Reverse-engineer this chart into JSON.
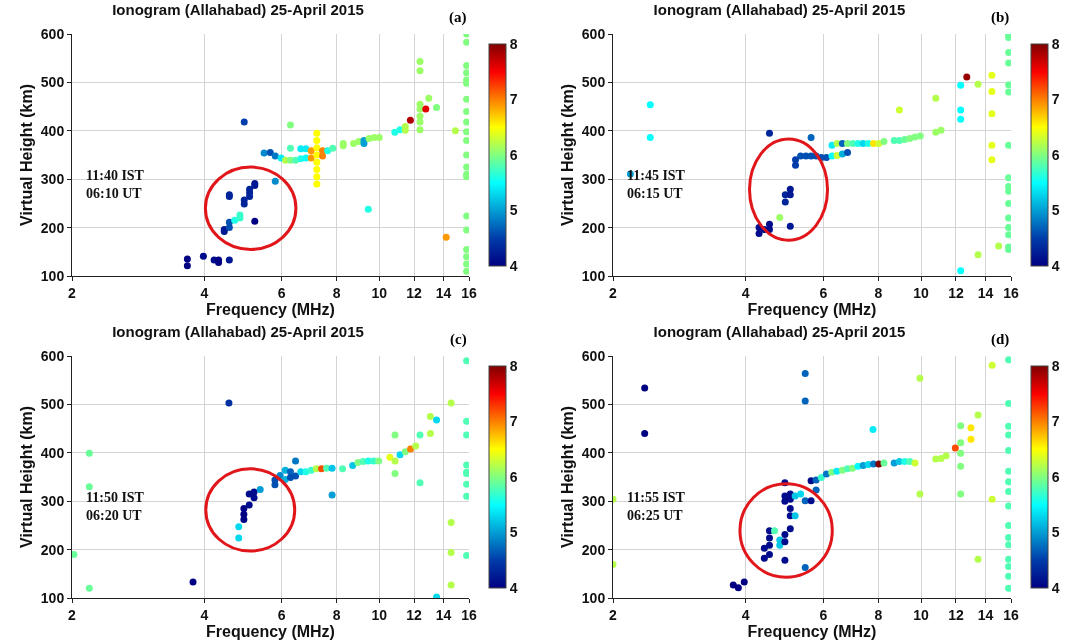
{
  "chart_data": [
    {
      "type": "scatter",
      "title": "Ionogram (Allahabad) 25-April 2015",
      "xlabel": "Frequency (MHz)",
      "ylabel": "Virtual Height (km)",
      "annotations": [
        "(a)",
        "11:40 IST\n06:10 UT"
      ],
      "log": "x",
      "grid": true,
      "marker": "circle",
      "xlim": [
        2,
        16
      ],
      "xticks": [
        2,
        4,
        6,
        8,
        10,
        12,
        14,
        16
      ],
      "ylim": [
        100,
        600
      ],
      "yticks": [
        100,
        200,
        300,
        400,
        500,
        600
      ],
      "clim": [
        4,
        8
      ],
      "cticks": [
        4,
        5,
        6,
        7,
        8
      ],
      "x": [
        3.66,
        3.66,
        3.98,
        4.21,
        4.31,
        4.31,
        4.56,
        4.56,
        4.56,
        4.44,
        4.44,
        4.56,
        4.56,
        4.69,
        4.82,
        4.82,
        4.93,
        4.93,
        5.07,
        5.07,
        5.07,
        5.21,
        5.21,
        5.21,
        4.93,
        5.47,
        5.65,
        5.8,
        5.8,
        5.98,
        6.12,
        6.28,
        6.28,
        6.28,
        6.45,
        6.63,
        6.63,
        6.81,
        6.81,
        7.0,
        7.0,
        7.21,
        7.21,
        7.21,
        7.21,
        7.21,
        7.21,
        7.21,
        7.21,
        7.43,
        7.43,
        7.63,
        7.84,
        8.28,
        8.28,
        8.74,
        8.98,
        9.23,
        9.23,
        9.48,
        9.74,
        10.0,
        9.44,
        10.85,
        11.15,
        11.46,
        11.46,
        11.77,
        12.38,
        12.38,
        12.38,
        12.38,
        12.38,
        12.38,
        12.38,
        12.76,
        12.96,
        13.5,
        14.2,
        14.9,
        15.8,
        15.8,
        15.8,
        15.8,
        15.8,
        15.8,
        15.8,
        15.8,
        15.8,
        15.8,
        15.8,
        15.8,
        15.8,
        15.8,
        15.8,
        15.8,
        15.8,
        15.8,
        15.8,
        15.8,
        15.8
      ],
      "values": [
        135,
        121,
        141,
        133,
        133,
        128,
        133,
        268,
        264,
        196,
        192,
        211,
        200,
        215,
        226,
        220,
        257,
        249,
        272,
        264,
        279,
        287,
        291,
        213,
        418,
        354,
        355,
        348,
        296,
        344,
        339,
        339,
        412,
        364,
        339,
        342,
        363,
        363,
        344,
        359,
        344,
        395,
        380,
        365,
        350,
        335,
        320,
        305,
        290,
        359,
        348,
        359,
        364,
        369,
        374,
        374,
        378,
        380,
        374,
        384,
        386,
        386,
        238,
        397,
        402,
        409,
        401,
        422,
        543,
        524,
        455,
        445,
        430,
        418,
        402,
        445,
        467,
        448,
        180,
        400,
        600,
        583,
        535,
        520,
        505,
        498,
        465,
        440,
        418,
        398,
        380,
        350,
        325,
        310,
        305,
        224,
        195,
        155,
        140,
        125,
        110
      ],
      "cvalues": [
        4.0,
        4.0,
        4.1,
        4.1,
        4.0,
        4.0,
        4.2,
        4.3,
        4.3,
        4.2,
        4.2,
        4.6,
        4.6,
        5.6,
        5.7,
        5.7,
        4.3,
        4.3,
        4.3,
        4.3,
        4.3,
        4.2,
        4.2,
        4.0,
        4.5,
        4.9,
        4.6,
        4.8,
        4.9,
        5.4,
        6.2,
        6.0,
        6.0,
        5.8,
        5.8,
        5.6,
        5.4,
        5.4,
        5.5,
        6.9,
        6.9,
        6.5,
        6.5,
        6.5,
        6.5,
        6.5,
        6.5,
        6.5,
        6.5,
        7.0,
        7.0,
        5.6,
        5.8,
        6.1,
        6.1,
        6.1,
        6.1,
        5.0,
        5.0,
        6.1,
        6.1,
        6.1,
        5.6,
        5.6,
        5.6,
        6.2,
        6.2,
        7.8,
        6.1,
        6.1,
        6.1,
        6.1,
        6.1,
        6.1,
        6.1,
        7.6,
        6.1,
        6.0,
        6.9,
        6.2,
        6.0,
        6.0,
        6.0,
        6.0,
        6.0,
        6.0,
        6.0,
        6.0,
        6.0,
        6.0,
        6.0,
        6.0,
        6.0,
        6.0,
        6.0,
        6.0,
        6.0,
        6.0,
        6.0,
        6.0,
        6.0
      ]
    },
    {
      "type": "scatter",
      "title": "Ionogram (Allahabad) 25-April 2015",
      "xlabel": "Frequency (MHz)",
      "ylabel": "Virtual Height (km)",
      "annotations": [
        "(b)",
        "11:45 IST\n06:15 UT"
      ],
      "log": "x",
      "grid": true,
      "marker": "circle",
      "xlim": [
        2,
        16
      ],
      "xticks": [
        2,
        4,
        6,
        8,
        10,
        12,
        14,
        16
      ],
      "ylim": [
        100,
        600
      ],
      "yticks": [
        100,
        200,
        300,
        400,
        500,
        600
      ],
      "clim": [
        4,
        8
      ],
      "cticks": [
        4,
        5,
        6,
        7,
        8
      ],
      "x": [
        2.19,
        2.43,
        2.43,
        4.53,
        5.63,
        4.29,
        4.29,
        4.41,
        4.53,
        4.53,
        4.78,
        4.92,
        4.92,
        5.05,
        5.05,
        5.05,
        5.19,
        5.19,
        5.33,
        5.48,
        5.63,
        5.78,
        5.94,
        6.1,
        6.28,
        6.45,
        6.63,
        6.81,
        7.0,
        7.19,
        7.39,
        7.59,
        7.8,
        8.02,
        8.24,
        8.69,
        8.93,
        9.18,
        9.43,
        9.69,
        9.96,
        6.28,
        6.45,
        6.63,
        6.81,
        10.8,
        11.1,
        10.8,
        8.93,
        12.3,
        12.3,
        12.3,
        12.3,
        12.7,
        13.47,
        13.47,
        14.48,
        14.48,
        14.48,
        14.48,
        14.48,
        15.0,
        15.8,
        15.8,
        15.8,
        15.8,
        15.8,
        15.8,
        15.8,
        15.8,
        15.8,
        15.8,
        15.8,
        15.8,
        15.8,
        15.8,
        15.8,
        15.8
      ],
      "values": [
        311,
        454,
        386,
        395,
        386,
        200,
        188,
        196,
        207,
        196,
        221,
        268,
        253,
        279,
        268,
        203,
        340,
        329,
        348,
        348,
        348,
        348,
        345,
        345,
        370,
        374,
        374,
        374,
        374,
        374,
        374,
        374,
        374,
        374,
        378,
        380,
        380,
        382,
        384,
        387,
        389,
        348,
        349,
        352,
        355,
        397,
        401,
        467,
        443,
        494,
        443,
        424,
        111,
        511,
        496,
        144,
        515,
        481,
        435,
        370,
        340,
        162,
        600,
        593,
        562,
        540,
        495,
        480,
        370,
        303,
        285,
        275,
        250,
        220,
        200,
        185,
        160,
        155
      ],
      "cvalues": [
        5.0,
        5.5,
        5.5,
        4.3,
        4.7,
        4.1,
        4.1,
        4.1,
        4.1,
        4.1,
        6.1,
        4.3,
        4.3,
        4.2,
        4.2,
        4.2,
        4.5,
        4.5,
        4.6,
        4.6,
        4.6,
        4.6,
        4.6,
        4.6,
        5.4,
        6.2,
        4.7,
        6.0,
        5.8,
        5.6,
        5.3,
        5.6,
        6.6,
        6.3,
        6.0,
        5.8,
        5.8,
        5.9,
        6.0,
        6.0,
        6.0,
        5.5,
        6.3,
        5.1,
        4.6,
        6.1,
        6.1,
        6.2,
        6.3,
        5.5,
        5.5,
        5.5,
        5.5,
        7.9,
        6.2,
        6.2,
        6.4,
        6.4,
        6.4,
        6.4,
        6.4,
        6.2,
        5.9,
        5.9,
        5.9,
        5.9,
        5.9,
        5.9,
        5.9,
        5.9,
        5.9,
        5.9,
        5.9,
        5.9,
        5.9,
        5.9,
        5.9,
        5.9
      ]
    },
    {
      "type": "scatter",
      "title": "Ionogram (Allahabad) 25-April 2015",
      "xlabel": "Frequency (MHz)",
      "ylabel": "Virtual Height (km)",
      "annotations": [
        "(c)",
        "11:50 IST\n06:20 UT"
      ],
      "log": "x",
      "grid": true,
      "marker": "circle",
      "xlim": [
        2,
        16
      ],
      "xticks": [
        2,
        4,
        6,
        8,
        10,
        12,
        14,
        16
      ],
      "ylim": [
        100,
        600
      ],
      "yticks": [
        100,
        200,
        300,
        400,
        500,
        600
      ],
      "clim": [
        4,
        8
      ],
      "cticks": [
        4,
        5,
        6,
        7,
        8
      ],
      "x": [
        2.02,
        2.19,
        2.19,
        2.19,
        3.77,
        4.55,
        4.79,
        4.79,
        4.92,
        4.92,
        4.92,
        5.06,
        5.06,
        5.19,
        5.19,
        5.36,
        5.79,
        5.79,
        5.95,
        6.11,
        6.11,
        6.28,
        6.28,
        6.45,
        6.45,
        6.63,
        6.81,
        7.0,
        7.19,
        7.39,
        7.59,
        7.81,
        7.81,
        8.25,
        8.7,
        8.94,
        9.19,
        9.44,
        9.71,
        9.97,
        10.57,
        10.86,
        10.86,
        10.86,
        11.15,
        11.46,
        11.78,
        12.1,
        12.38,
        12.38,
        13.07,
        13.07,
        13.5,
        13.5,
        14.57,
        14.57,
        14.57,
        14.57,
        15.8,
        15.8,
        15.8,
        15.8,
        15.8,
        15.8,
        15.8,
        15.8,
        15.8
      ],
      "values": [
        190,
        399,
        330,
        120,
        133,
        503,
        247,
        224,
        262,
        273,
        285,
        292,
        315,
        307,
        319,
        324,
        334,
        344,
        353,
        364,
        345,
        361,
        349,
        383,
        352,
        361,
        361,
        364,
        367,
        367,
        368,
        368,
        313,
        367,
        374,
        380,
        382,
        383,
        383,
        383,
        391,
        383,
        357,
        437,
        396,
        402,
        408,
        414,
        437,
        338,
        475,
        440,
        468,
        102,
        503,
        256,
        194,
        127,
        590,
        465,
        437,
        375,
        360,
        357,
        335,
        310,
        188
      ],
      "cvalues": [
        5.9,
        5.9,
        5.9,
        5.9,
        4.0,
        4.4,
        5.3,
        5.3,
        4.0,
        4.0,
        4.0,
        4.1,
        4.1,
        4.1,
        4.1,
        5.0,
        4.6,
        4.6,
        4.9,
        5.1,
        5.1,
        4.7,
        4.6,
        4.8,
        4.6,
        5.3,
        5.6,
        5.7,
        6.2,
        7.2,
        5.8,
        5.2,
        5.0,
        5.8,
        5.2,
        6.0,
        5.8,
        5.6,
        5.7,
        6.0,
        6.4,
        6.2,
        6.0,
        6.0,
        5.3,
        6.0,
        7.0,
        6.2,
        5.8,
        5.8,
        6.2,
        6.2,
        5.3,
        5.3,
        6.2,
        6.2,
        6.2,
        6.2,
        5.8,
        5.8,
        5.8,
        5.8,
        5.8,
        5.8,
        5.8,
        5.8,
        5.8
      ]
    },
    {
      "type": "scatter",
      "title": "Ionogram (Allahabad) 25-April 2015",
      "xlabel": "Frequency (MHz)",
      "ylabel": "Virtual Height (km)",
      "annotations": [
        "(d)",
        "11:55 IST\n06:25 UT"
      ],
      "log": "x",
      "grid": true,
      "marker": "circle",
      "xlim": [
        2,
        16
      ],
      "xticks": [
        2,
        4,
        6,
        8,
        10,
        12,
        14,
        16
      ],
      "ylim": [
        100,
        600
      ],
      "yticks": [
        100,
        200,
        300,
        400,
        500,
        600
      ],
      "clim": [
        4,
        8
      ],
      "cticks": [
        4,
        5,
        6,
        7,
        8
      ],
      "x": [
        2.0,
        2.0,
        2.36,
        2.36,
        3.75,
        3.85,
        3.97,
        4.41,
        4.41,
        4.53,
        4.53,
        4.53,
        4.53,
        4.65,
        4.78,
        4.78,
        4.91,
        4.91,
        4.91,
        4.91,
        4.91,
        4.91,
        5.05,
        5.05,
        5.05,
        5.05,
        5.05,
        5.18,
        5.18,
        5.33,
        5.46,
        5.46,
        5.46,
        5.46,
        5.63,
        5.63,
        5.78,
        5.78,
        5.94,
        6.1,
        6.27,
        6.44,
        6.63,
        6.81,
        6.99,
        7.19,
        7.39,
        7.59,
        7.8,
        8.02,
        8.24,
        8.69,
        8.93,
        9.18,
        9.43,
        9.69,
        7.78,
        9.94,
        9.94,
        10.8,
        11.1,
        11.4,
        11.96,
        12.3,
        12.3,
        12.3,
        12.3,
        12.3,
        12.98,
        12.98,
        13.47,
        13.47,
        14.5,
        14.5,
        15.8,
        15.8,
        15.8,
        15.8,
        15.8,
        15.8,
        15.8,
        15.8,
        15.8,
        15.8,
        15.8,
        15.8,
        15.8,
        15.8,
        15.8,
        15.8
      ],
      "values": [
        304,
        169,
        534,
        440,
        127,
        121,
        133,
        182,
        203,
        190,
        209,
        224,
        239,
        239,
        220,
        209,
        178,
        216,
        231,
        300,
        311,
        338,
        243,
        270,
        285,
        315,
        304,
        311,
        270,
        315,
        564,
        507,
        163,
        301,
        342,
        301,
        344,
        323,
        349,
        356,
        360,
        362,
        364,
        367,
        368,
        372,
        374,
        376,
        377,
        377,
        379,
        379,
        382,
        382,
        382,
        379,
        448,
        554,
        315,
        387,
        388,
        394,
        410,
        456,
        421,
        399,
        372,
        315,
        452,
        428,
        478,
        180,
        581,
        304,
        592,
        502,
        455,
        437,
        405,
        362,
        340,
        320,
        290,
        250,
        225,
        210,
        180,
        165,
        145,
        120
      ],
      "cvalues": [
        6.2,
        6.2,
        4.0,
        4.0,
        4.0,
        4.0,
        4.0,
        4.1,
        4.1,
        4.1,
        4.1,
        4.1,
        4.1,
        5.8,
        5.2,
        5.2,
        4.1,
        4.1,
        4.1,
        4.1,
        4.1,
        4.1,
        4.1,
        4.1,
        4.1,
        4.1,
        4.1,
        5.2,
        5.2,
        5.3,
        4.7,
        4.7,
        4.7,
        4.7,
        4.1,
        4.1,
        4.7,
        4.7,
        5.7,
        4.8,
        6.0,
        5.4,
        6.0,
        5.8,
        6.0,
        5.5,
        5.0,
        5.3,
        4.8,
        8.0,
        5.9,
        5.0,
        5.2,
        5.6,
        5.8,
        6.3,
        5.4,
        6.2,
        6.2,
        6.2,
        6.2,
        6.2,
        7.2,
        6.0,
        6.0,
        6.0,
        6.0,
        6.0,
        6.6,
        6.6,
        6.2,
        6.2,
        6.3,
        6.3,
        5.8,
        5.8,
        5.8,
        5.8,
        5.8,
        5.8,
        5.8,
        5.8,
        5.8,
        5.8,
        5.8,
        5.8,
        5.8,
        5.8,
        5.8,
        5.8
      ]
    }
  ]
}
